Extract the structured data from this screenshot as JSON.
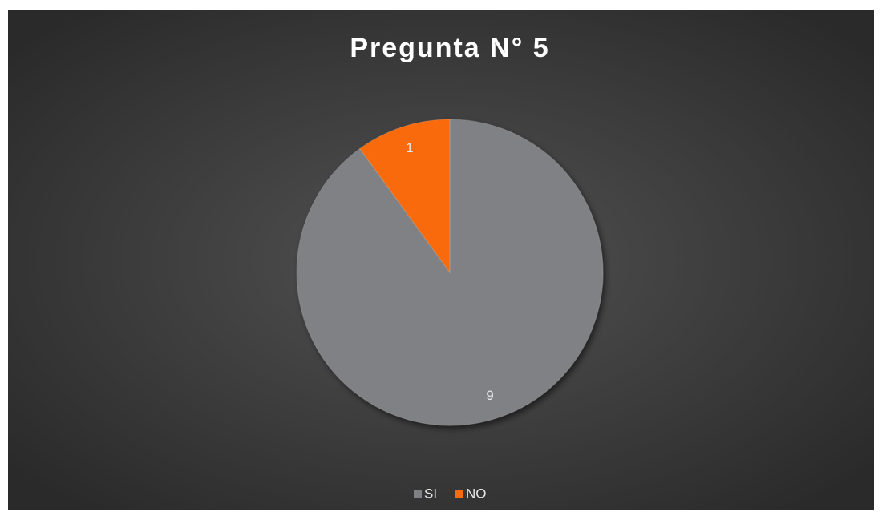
{
  "chart_data": {
    "type": "pie",
    "title": "Pregunta N° 5",
    "categories": [
      "SI",
      "NO"
    ],
    "values": [
      9,
      1
    ],
    "colors": [
      "#808184",
      "#f96a0a"
    ],
    "legend": "bottom"
  }
}
